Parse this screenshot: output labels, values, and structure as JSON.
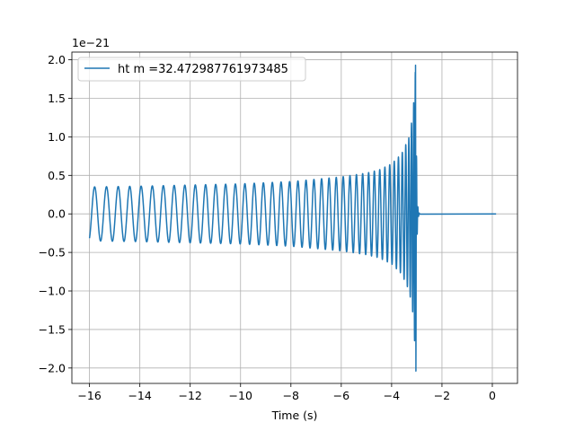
{
  "chart_data": {
    "type": "line",
    "title": "",
    "xlabel": "Time (s)",
    "ylabel": "",
    "offset_label": "1e−21",
    "xlim": [
      -16.7,
      1.0
    ],
    "ylim": [
      -2.2,
      2.1
    ],
    "xticks": [
      -16,
      -14,
      -12,
      -10,
      -8,
      -6,
      -4,
      -2,
      0
    ],
    "xtick_labels": [
      "−16",
      "−14",
      "−12",
      "−10",
      "−8",
      "−6",
      "−4",
      "−2",
      "0"
    ],
    "yticks": [
      2.0,
      1.5,
      1.0,
      0.5,
      0.0,
      -0.5,
      -1.0,
      -1.5,
      -2.0
    ],
    "ytick_labels": [
      "2.0",
      "1.5",
      "1.0",
      "0.5",
      "0.0",
      "−0.5",
      "−1.0",
      "−1.5",
      "−2.0"
    ],
    "grid": true,
    "legend_position": "top-left",
    "series": [
      {
        "name": "ht m =32.472987761973485",
        "color": "#1f77b4",
        "description": "gravitational-wave chirp: oscillation amplitude grows from ~0.35 at t=-16 to ~1.9 near merger at t≈-3.05, then ringdown to 0 until t≈0.15",
        "envelope": {
          "t": [
            -16.0,
            -14.0,
            -12.0,
            -10.0,
            -8.0,
            -6.0,
            -5.0,
            -4.5,
            -4.0,
            -3.6,
            -3.3,
            -3.15,
            -3.08,
            -3.05
          ],
          "amp": [
            0.35,
            0.36,
            0.375,
            0.39,
            0.42,
            0.48,
            0.53,
            0.57,
            0.65,
            0.78,
            1.0,
            1.3,
            1.7,
            1.92
          ]
        },
        "merger_time": -3.05,
        "end_time": 0.15,
        "peak_max": 1.93,
        "peak_min": -2.04
      }
    ]
  }
}
